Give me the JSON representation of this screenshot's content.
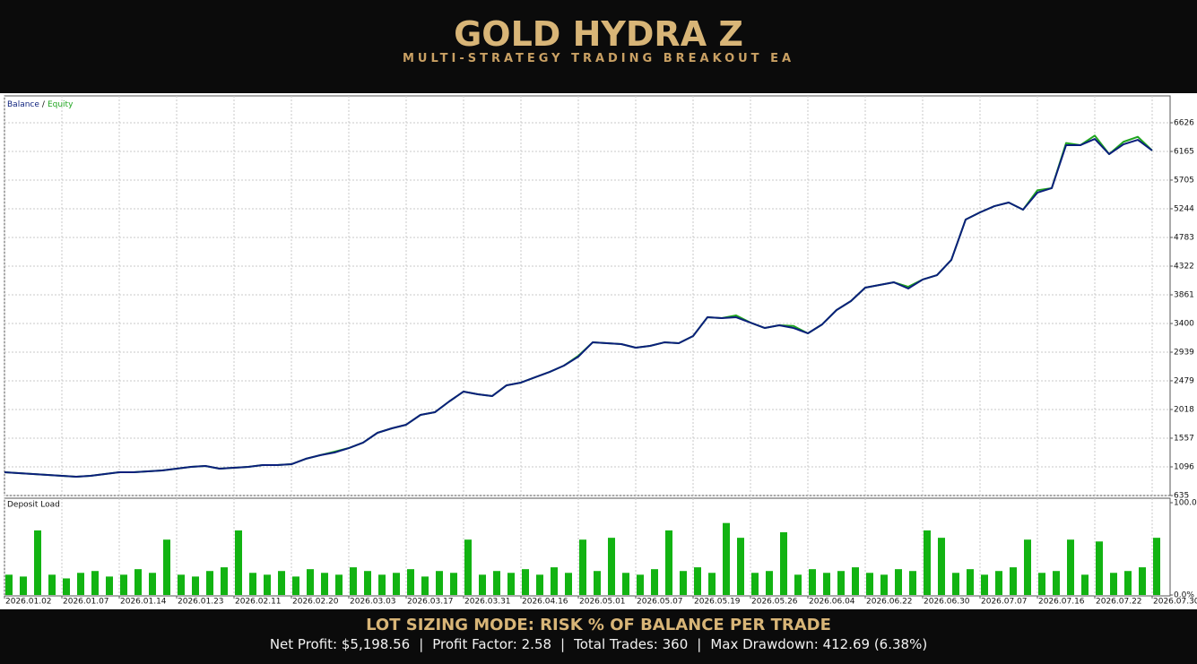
{
  "header": {
    "title": "GOLD HYDRA Z",
    "subtitle": "MULTI-STRATEGY TRADING BREAKOUT EA"
  },
  "legend_separator": "/",
  "chart_data": [
    {
      "type": "line",
      "categories": [
        "2026.01.02",
        null,
        null,
        null,
        "2026.01.07",
        null,
        null,
        null,
        "2026.01.14",
        null,
        null,
        null,
        "2026.01.23",
        null,
        null,
        null,
        "2026.02.11",
        null,
        null,
        null,
        "2026.02.20",
        null,
        null,
        null,
        "2026.03.03",
        null,
        null,
        null,
        "2026.03.17",
        null,
        null,
        null,
        "2026.03.31",
        null,
        null,
        null,
        "2026.04.16",
        null,
        null,
        null,
        "2026.05.01",
        null,
        null,
        null,
        "2026.05.07",
        null,
        null,
        null,
        "2026.05.19",
        null,
        null,
        null,
        "2026.05.26",
        null,
        null,
        null,
        "2026.06.04",
        null,
        null,
        null,
        "2026.06.22",
        null,
        null,
        null,
        "2026.06.30",
        null,
        null,
        null,
        "2026.07.07",
        null,
        null,
        null,
        "2026.07.16",
        null,
        null,
        null,
        "2026.07.22",
        null,
        null,
        null,
        "2026.07.30"
      ],
      "series": [
        {
          "name": "Equity",
          "color": "#1fa51f",
          "values": [
            1010,
            995,
            981,
            966,
            952,
            937,
            952,
            981,
            1010,
            1010,
            1024,
            1038,
            1067,
            1096,
            1110,
            1067,
            1082,
            1096,
            1125,
            1125,
            1139,
            1225,
            1283,
            1340,
            1398,
            1485,
            1643,
            1715,
            1773,
            1931,
            1974,
            2147,
            2306,
            2263,
            2234,
            2407,
            2450,
            2536,
            2622,
            2723,
            2880,
            3097,
            3083,
            3069,
            3011,
            3040,
            3097,
            3083,
            3198,
            3500,
            3486,
            3530,
            3414,
            3328,
            3371,
            3360,
            3242,
            3386,
            3616,
            3760,
            3976,
            4019,
            4062,
            3990,
            4106,
            4177,
            4422,
            5071,
            5186,
            5286,
            5344,
            5229,
            5540,
            5575,
            6300,
            6266,
            6420,
            6122,
            6320,
            6400,
            6180
          ]
        },
        {
          "name": "Balance",
          "color": "#0b1f7c",
          "values": [
            1010,
            995,
            981,
            966,
            952,
            937,
            952,
            981,
            1010,
            1010,
            1024,
            1038,
            1067,
            1096,
            1110,
            1067,
            1082,
            1096,
            1125,
            1125,
            1139,
            1225,
            1283,
            1326,
            1398,
            1485,
            1643,
            1715,
            1773,
            1931,
            1974,
            2147,
            2306,
            2263,
            2234,
            2407,
            2450,
            2536,
            2622,
            2723,
            2867,
            3097,
            3083,
            3069,
            3011,
            3040,
            3097,
            3083,
            3198,
            3500,
            3486,
            3500,
            3414,
            3328,
            3371,
            3328,
            3242,
            3386,
            3616,
            3760,
            3976,
            4019,
            4062,
            3962,
            4106,
            4177,
            4422,
            5071,
            5186,
            5286,
            5344,
            5229,
            5503,
            5575,
            6266,
            6266,
            6366,
            6122,
            6280,
            6352,
            6180
          ]
        }
      ],
      "ylim": [
        635,
        7058
      ],
      "yticks": [
        635,
        1096,
        1557,
        2018,
        2479,
        2939,
        3400,
        3861,
        4322,
        4783,
        5244,
        5705,
        6165,
        6626
      ],
      "grid": true
    },
    {
      "type": "bar",
      "title": "Deposit Load",
      "color": "#12b312",
      "values": [
        22,
        20,
        70,
        22,
        18,
        24,
        26,
        20,
        22,
        28,
        24,
        60,
        22,
        20,
        26,
        30,
        70,
        24,
        22,
        26,
        20,
        28,
        24,
        22,
        30,
        26,
        22,
        24,
        28,
        20,
        26,
        24,
        60,
        22,
        26,
        24,
        28,
        22,
        30,
        24,
        60,
        26,
        62,
        24,
        22,
        28,
        70,
        26,
        30,
        24,
        78,
        62,
        24,
        26,
        68,
        22,
        28,
        24,
        26,
        30,
        24,
        22,
        28,
        26,
        70,
        62,
        24,
        28,
        22,
        26,
        30,
        60,
        24,
        26,
        60,
        22,
        58,
        24,
        26,
        30,
        62
      ],
      "ylim": [
        0,
        100
      ],
      "yticks": [
        {
          "value": 0,
          "label": "0.0%"
        },
        {
          "value": 100,
          "label": "100.0%"
        }
      ],
      "grid": true
    }
  ],
  "footer": {
    "heading": "LOT SIZING MODE: RISK % OF BALANCE PER TRADE",
    "stats": [
      "Net Profit: $5,198.56",
      "Profit Factor: 2.58",
      "Total Trades: 360",
      "Max Drawdown: 412.69 (6.38%)"
    ],
    "separator": "|"
  }
}
